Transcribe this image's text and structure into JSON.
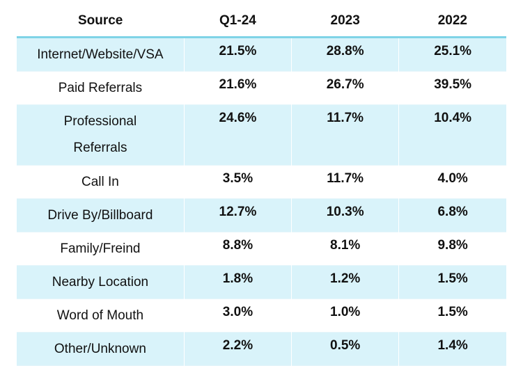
{
  "table": {
    "headers": [
      "Source",
      "Q1-24",
      "2023",
      "2022"
    ],
    "rows": [
      {
        "source": "Internet/Website/VSA",
        "q1_24": "21.5%",
        "y2023": "28.8%",
        "y2022": "25.1%"
      },
      {
        "source": "Paid Referrals",
        "q1_24": "21.6%",
        "y2023": "26.7%",
        "y2022": "39.5%"
      },
      {
        "source_line1": "Professional",
        "source_line2": "Referrals",
        "q1_24": "24.6%",
        "y2023": "11.7%",
        "y2022": "10.4%"
      },
      {
        "source": "Call In",
        "q1_24": "3.5%",
        "y2023": "11.7%",
        "y2022": "4.0%"
      },
      {
        "source": "Drive By/Billboard",
        "q1_24": "12.7%",
        "y2023": "10.3%",
        "y2022": "6.8%"
      },
      {
        "source": "Family/Freind",
        "q1_24": "8.8%",
        "y2023": "8.1%",
        "y2022": "9.8%"
      },
      {
        "source": "Nearby Location",
        "q1_24": "1.8%",
        "y2023": "1.2%",
        "y2022": "1.5%"
      },
      {
        "source": "Word of Mouth",
        "q1_24": "3.0%",
        "y2023": "1.0%",
        "y2022": "1.5%"
      },
      {
        "source": "Other/Unknown",
        "q1_24": "2.2%",
        "y2023": "0.5%",
        "y2022": "1.4%"
      }
    ],
    "colors": {
      "shade": "#d9f3fa",
      "header_rule": "#7fd3e6"
    }
  }
}
